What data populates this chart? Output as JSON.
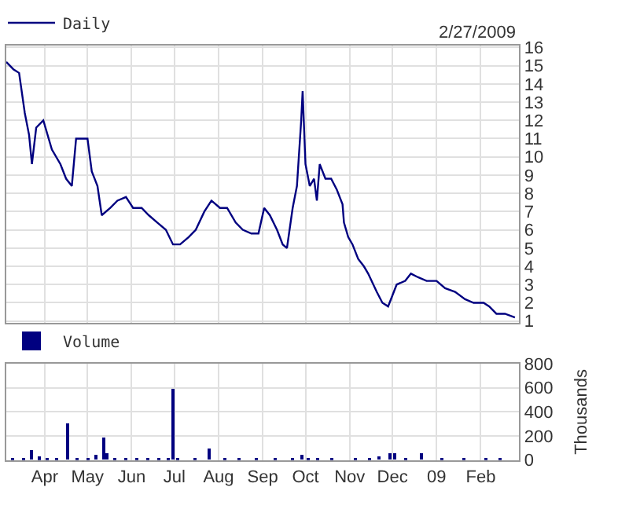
{
  "chart_data": [
    {
      "type": "line",
      "annotations": [
        "2/27/2009"
      ],
      "x": [
        "2008-03-05",
        "2008-03-10",
        "2008-03-14",
        "2008-03-18",
        "2008-03-21",
        "2008-03-23",
        "2008-03-26",
        "2008-03-31",
        "2008-04-06",
        "2008-04-12",
        "2008-04-16",
        "2008-04-20",
        "2008-04-23",
        "2008-05-01",
        "2008-05-04",
        "2008-05-08",
        "2008-05-11",
        "2008-05-17",
        "2008-05-22",
        "2008-05-28",
        "2008-06-02",
        "2008-06-08",
        "2008-06-13",
        "2008-06-19",
        "2008-06-25",
        "2008-06-30",
        "2008-07-05",
        "2008-07-11",
        "2008-07-16",
        "2008-07-22",
        "2008-07-27",
        "2008-08-02",
        "2008-08-07",
        "2008-08-13",
        "2008-08-18",
        "2008-08-24",
        "2008-08-29",
        "2008-09-02",
        "2008-09-06",
        "2008-09-11",
        "2008-09-15",
        "2008-09-18",
        "2008-09-22",
        "2008-09-25",
        "2008-09-28",
        "2008-09-29",
        "2008-10-01",
        "2008-10-04",
        "2008-10-07",
        "2008-10-09",
        "2008-10-11",
        "2008-10-15",
        "2008-10-19",
        "2008-10-23",
        "2008-10-27",
        "2008-10-28",
        "2008-10-31",
        "2008-11-03",
        "2008-11-07",
        "2008-11-11",
        "2008-11-14",
        "2008-11-20",
        "2008-11-24",
        "2008-11-28",
        "2008-12-01",
        "2008-12-04",
        "2008-12-10",
        "2008-12-14",
        "2008-12-19",
        "2008-12-25",
        "2009-01-01",
        "2009-01-07",
        "2009-01-14",
        "2009-01-21",
        "2009-01-27",
        "2009-02-03",
        "2009-02-07",
        "2009-02-12",
        "2009-02-18",
        "2009-02-25"
      ],
      "series": [
        {
          "name": "Daily",
          "color": "#000080",
          "values": [
            15.2,
            14.8,
            14.6,
            12.4,
            11.2,
            9.6,
            11.6,
            12.0,
            10.4,
            9.6,
            8.8,
            8.4,
            11.0,
            11.0,
            9.2,
            8.4,
            6.8,
            7.2,
            7.6,
            7.8,
            7.2,
            7.2,
            6.8,
            6.4,
            6.0,
            5.2,
            5.2,
            5.6,
            6.0,
            7.0,
            7.6,
            7.2,
            7.2,
            6.4,
            6.0,
            5.8,
            5.8,
            7.2,
            6.8,
            6.0,
            5.2,
            5.0,
            7.2,
            8.4,
            12.0,
            13.6,
            9.6,
            8.4,
            8.8,
            7.6,
            9.6,
            8.8,
            8.8,
            8.2,
            7.4,
            6.4,
            5.6,
            5.2,
            4.4,
            4.0,
            3.6,
            2.6,
            2.0,
            1.8,
            2.4,
            3.0,
            3.2,
            3.6,
            3.4,
            3.2,
            3.2,
            2.8,
            2.6,
            2.2,
            2.0,
            2.0,
            1.8,
            1.4,
            1.4,
            1.2
          ]
        }
      ],
      "xlim": [
        "2008-03-05",
        "2009-02-28"
      ],
      "xticks": [
        {
          "value": "2008-04-01",
          "label": null
        },
        {
          "value": "2008-05-01",
          "label": null
        },
        {
          "value": "2008-06-01",
          "label": null
        },
        {
          "value": "2008-07-01",
          "label": null
        },
        {
          "value": "2008-08-01",
          "label": null
        },
        {
          "value": "2008-09-01",
          "label": null
        },
        {
          "value": "2008-10-01",
          "label": null
        },
        {
          "value": "2008-11-01",
          "label": null
        },
        {
          "value": "2008-12-01",
          "label": null
        },
        {
          "value": "2009-01-01",
          "label": null
        },
        {
          "value": "2009-02-01",
          "label": null
        }
      ],
      "ylim": [
        0.9,
        16.1
      ],
      "yticks": [
        1,
        2,
        3,
        4,
        5,
        6,
        7,
        8,
        9,
        10,
        11,
        12,
        13,
        14,
        15,
        16
      ],
      "grid": true,
      "legend": "top left",
      "tick_labels": "y"
    },
    {
      "type": "bar",
      "ylabel": "Thousands",
      "x": [
        "2008-03-10",
        "2008-03-17",
        "2008-03-23",
        "2008-03-28",
        "2008-04-03",
        "2008-04-09",
        "2008-04-17",
        "2008-04-24",
        "2008-05-01",
        "2008-05-07",
        "2008-05-12",
        "2008-05-15",
        "2008-05-20",
        "2008-05-28",
        "2008-06-05",
        "2008-06-12",
        "2008-06-20",
        "2008-06-27",
        "2008-06-30",
        "2008-07-03",
        "2008-07-15",
        "2008-07-25",
        "2008-08-05",
        "2008-08-15",
        "2008-08-28",
        "2008-09-10",
        "2008-09-22",
        "2008-09-28",
        "2008-10-03",
        "2008-10-10",
        "2008-10-20",
        "2008-11-05",
        "2008-11-15",
        "2008-11-22",
        "2008-11-29",
        "2008-12-03",
        "2008-12-10",
        "2008-12-21",
        "2009-01-05",
        "2009-01-20",
        "2009-02-05",
        "2009-02-15"
      ],
      "series": [
        {
          "name": "Volume",
          "color": "#000080",
          "values": [
            10,
            20,
            82,
            25,
            15,
            20,
            300,
            15,
            20,
            40,
            185,
            50,
            15,
            10,
            10,
            10,
            10,
            20,
            595,
            15,
            10,
            94,
            10,
            5,
            10,
            10,
            20,
            45,
            20,
            10,
            10,
            10,
            20,
            30,
            60,
            60,
            20,
            60,
            10,
            10,
            20,
            10
          ]
        }
      ],
      "xlim": [
        "2008-03-05",
        "2009-02-28"
      ],
      "xticks": [
        {
          "value": "2008-04-01",
          "label": "Apr"
        },
        {
          "value": "2008-05-01",
          "label": "May"
        },
        {
          "value": "2008-06-01",
          "label": "Jun"
        },
        {
          "value": "2008-07-01",
          "label": "Jul"
        },
        {
          "value": "2008-08-01",
          "label": "Aug"
        },
        {
          "value": "2008-09-01",
          "label": "Sep"
        },
        {
          "value": "2008-10-01",
          "label": "Oct"
        },
        {
          "value": "2008-11-01",
          "label": "Nov"
        },
        {
          "value": "2008-12-01",
          "label": "Dec"
        },
        {
          "value": "2009-01-01",
          "label": "09"
        },
        {
          "value": "2009-02-01",
          "label": "Feb"
        }
      ],
      "ylim": [
        0,
        800
      ],
      "yticks": [
        0,
        200,
        400,
        600,
        800
      ],
      "grid": true,
      "legend": "top left"
    }
  ]
}
